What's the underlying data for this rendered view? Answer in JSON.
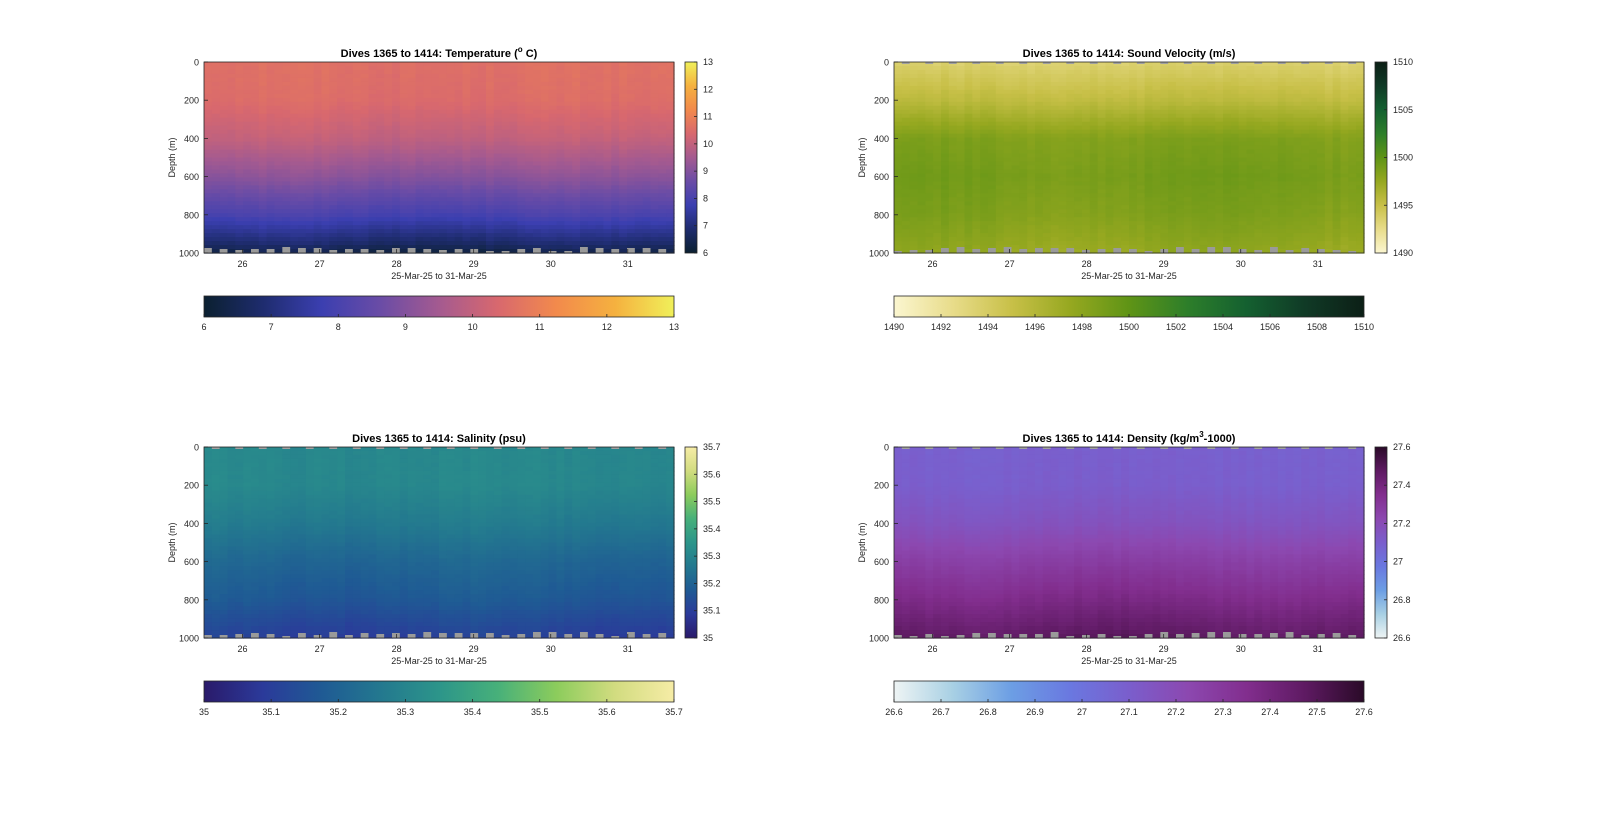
{
  "chart_data": [
    {
      "type": "heatmap",
      "title": "Dives 1365 to 1414: Temperature (",
      "title_sup": "o",
      "title_tail": " C)",
      "ylabel": "Depth (m)",
      "xlabel": "25-Mar-25 to 31-Mar-25",
      "x_ticks": [
        "26",
        "27",
        "28",
        "29",
        "30",
        "31"
      ],
      "y_ticks": [
        "0",
        "200",
        "400",
        "600",
        "800",
        "1000"
      ],
      "ylim": [
        0,
        1000
      ],
      "xlim": [
        25.5,
        31.6
      ],
      "colorbar_ticks": [
        "6",
        "7",
        "8",
        "9",
        "10",
        "11",
        "12",
        "13"
      ],
      "horizontal_colorbar_ticks": [
        "6",
        "7",
        "8",
        "9",
        "10",
        "11",
        "12",
        "13"
      ],
      "clim": [
        6,
        13
      ],
      "colormap": [
        "#0b2030",
        "#1e2c6e",
        "#3b3fb0",
        "#6a4ca6",
        "#a45a90",
        "#d8686e",
        "#f28a4c",
        "#f5b13f",
        "#f0f05a"
      ],
      "profile": [
        [
          0,
          10.6
        ],
        [
          200,
          10.5
        ],
        [
          400,
          10.0
        ],
        [
          600,
          9.1
        ],
        [
          800,
          8.0
        ],
        [
          950,
          6.8
        ],
        [
          1000,
          6.3
        ]
      ]
    },
    {
      "type": "heatmap",
      "title": "Dives 1365 to 1414: Sound Velocity (m/s)",
      "title_sup": "",
      "title_tail": "",
      "ylabel": "Depth (m)",
      "xlabel": "25-Mar-25 to 31-Mar-25",
      "x_ticks": [
        "26",
        "27",
        "28",
        "29",
        "30",
        "31"
      ],
      "y_ticks": [
        "0",
        "200",
        "400",
        "600",
        "800",
        "1000"
      ],
      "ylim": [
        0,
        1000
      ],
      "xlim": [
        25.5,
        31.6
      ],
      "colorbar_ticks": [
        "1490",
        "1495",
        "1500",
        "1505",
        "1510"
      ],
      "horizontal_colorbar_ticks": [
        "1490",
        "1492",
        "1494",
        "1496",
        "1498",
        "1500",
        "1502",
        "1504",
        "1506",
        "1508",
        "1510"
      ],
      "clim": [
        1490,
        1510
      ],
      "colormap": [
        "#fbf6d0",
        "#e8dc8a",
        "#c8c048",
        "#96a820",
        "#5f9416",
        "#2d7e2a",
        "#146030",
        "#103a26",
        "#0c1f16"
      ],
      "profile": [
        [
          0,
          1493.5
        ],
        [
          200,
          1495.5
        ],
        [
          400,
          1498.5
        ],
        [
          600,
          1499.0
        ],
        [
          800,
          1498.5
        ],
        [
          1000,
          1497.5
        ]
      ]
    },
    {
      "type": "heatmap",
      "title": "Dives 1365 to 1414: Salinity (psu)",
      "title_sup": "",
      "title_tail": "",
      "ylabel": "Depth (m)",
      "xlabel": "25-Mar-25 to 31-Mar-25",
      "x_ticks": [
        "26",
        "27",
        "28",
        "29",
        "30",
        "31"
      ],
      "y_ticks": [
        "0",
        "200",
        "400",
        "600",
        "800",
        "1000"
      ],
      "ylim": [
        0,
        1000
      ],
      "xlim": [
        25.5,
        31.6
      ],
      "colorbar_ticks": [
        "35",
        "35.1",
        "35.2",
        "35.3",
        "35.4",
        "35.5",
        "35.6",
        "35.7"
      ],
      "horizontal_colorbar_ticks": [
        "35",
        "35.1",
        "35.2",
        "35.3",
        "35.4",
        "35.5",
        "35.6",
        "35.7"
      ],
      "clim": [
        35,
        35.7
      ],
      "colormap": [
        "#2a1a6a",
        "#2b3a9a",
        "#1f5a94",
        "#23788f",
        "#2c958a",
        "#47b07a",
        "#8ccc5c",
        "#d2dc80",
        "#f6eca6"
      ],
      "profile": [
        [
          0,
          35.31
        ],
        [
          200,
          35.31
        ],
        [
          400,
          35.27
        ],
        [
          600,
          35.21
        ],
        [
          800,
          35.17
        ],
        [
          1000,
          35.1
        ]
      ]
    },
    {
      "type": "heatmap",
      "title": "Dives 1365 to 1414: Density (kg/m",
      "title_sup": "3",
      "title_tail": "-1000)",
      "ylabel": "Depth (m)",
      "xlabel": "25-Mar-25 to 31-Mar-25",
      "x_ticks": [
        "26",
        "27",
        "28",
        "29",
        "30",
        "31"
      ],
      "y_ticks": [
        "0",
        "200",
        "400",
        "600",
        "800",
        "1000"
      ],
      "ylim": [
        0,
        1000
      ],
      "xlim": [
        25.5,
        31.6
      ],
      "colorbar_ticks": [
        "26.6",
        "26.8",
        "27",
        "27.2",
        "27.4",
        "27.6"
      ],
      "horizontal_colorbar_ticks": [
        "26.6",
        "26.7",
        "26.8",
        "26.9",
        "27",
        "27.1",
        "27.2",
        "27.3",
        "27.4",
        "27.5",
        "27.6"
      ],
      "clim": [
        26.6,
        27.6
      ],
      "colormap": [
        "#eef4f4",
        "#a8d0e4",
        "#6c9ee4",
        "#6a78e0",
        "#7a5ecc",
        "#8c48b0",
        "#822e8e",
        "#5e1a62",
        "#2a0a28"
      ],
      "profile": [
        [
          0,
          27.09
        ],
        [
          200,
          27.1
        ],
        [
          400,
          27.16
        ],
        [
          600,
          27.27
        ],
        [
          800,
          27.37
        ],
        [
          950,
          27.45
        ],
        [
          1000,
          27.48
        ]
      ]
    }
  ]
}
